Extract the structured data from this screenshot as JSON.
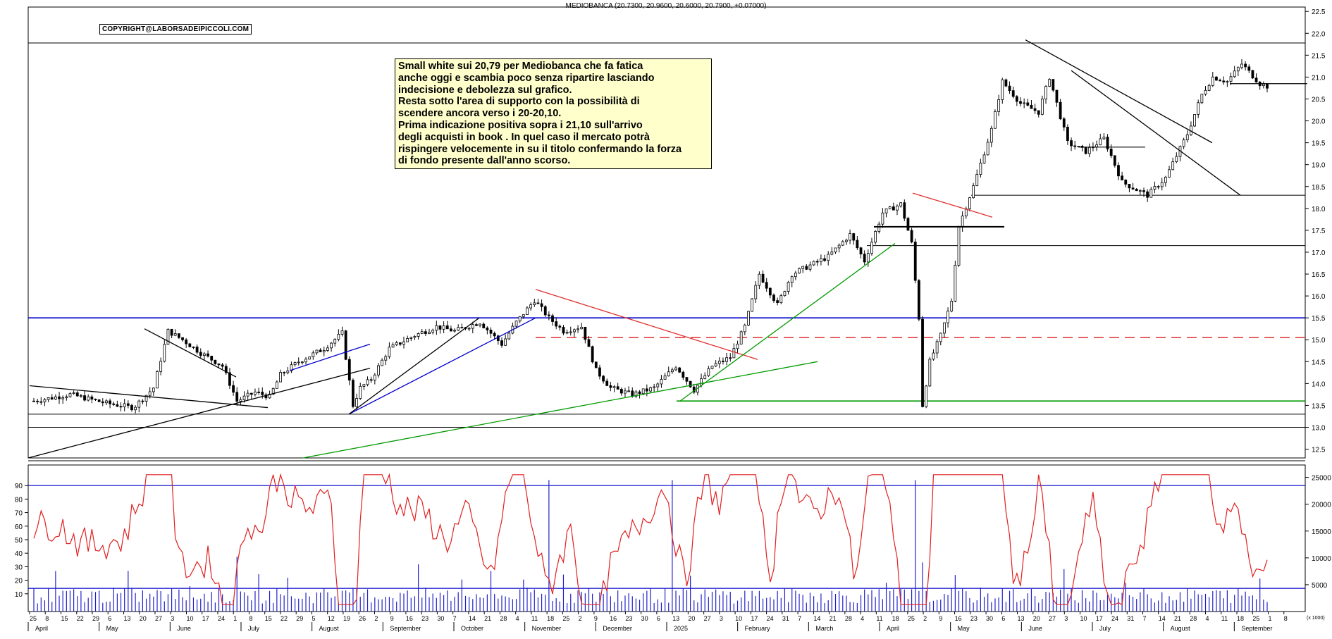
{
  "header": "MEDIOBANCA (20.7300, 20.9600, 20.6000, 20.7900, +0.07000)",
  "copyright": "COPYRIGHT@LABORSADEIPICCOLI.COM",
  "note_lines": [
    "Small white sui 20,79  per Mediobanca che fa fatica",
    "anche oggi e scambia poco senza ripartire lasciando",
    "indecisione e debolezza sul grafico.",
    "Resta sotto l'area di supporto con la possibilità di",
    "scendere ancora verso i 20-20,10.",
    "Prima indicazione positiva sopra i 21,10 sull'arrivo",
    "degli acquisti in book . In quel caso il mercato potrà",
    "rispingere velocemente in su il titolo confermando la forza",
    "di fondo presente dall'anno scorso."
  ],
  "chart_data": [
    {
      "type": "candlestick",
      "title": "MEDIOBANCA",
      "ylim": [
        12.3,
        22.6
      ],
      "y_ticks": [
        "12.5",
        "13.0",
        "13.5",
        "14.0",
        "14.5",
        "15.0",
        "15.5",
        "16.0",
        "16.5",
        "17.0",
        "17.5",
        "18.0",
        "18.5",
        "19.0",
        "19.5",
        "20.0",
        "20.5",
        "21.0",
        "21.5",
        "22.0",
        "22.5"
      ],
      "last_bar": {
        "open": 20.73,
        "high": 20.96,
        "low": 20.6,
        "close": 20.79,
        "change": 0.07
      },
      "price_path": [
        [
          0,
          13.6
        ],
        [
          20,
          13.75
        ],
        [
          40,
          13.55
        ],
        [
          55,
          13.45
        ],
        [
          66,
          13.9
        ],
        [
          74,
          15.2
        ],
        [
          82,
          15.0
        ],
        [
          92,
          14.7
        ],
        [
          104,
          14.4
        ],
        [
          112,
          13.6
        ],
        [
          122,
          13.8
        ],
        [
          130,
          13.7
        ],
        [
          136,
          14.2
        ],
        [
          146,
          14.5
        ],
        [
          160,
          14.8
        ],
        [
          170,
          15.15
        ],
        [
          176,
          13.5
        ],
        [
          180,
          13.9
        ],
        [
          186,
          14.1
        ],
        [
          196,
          14.8
        ],
        [
          210,
          15.1
        ],
        [
          222,
          15.3
        ],
        [
          232,
          15.2
        ],
        [
          246,
          15.4
        ],
        [
          258,
          14.9
        ],
        [
          266,
          15.4
        ],
        [
          276,
          15.9
        ],
        [
          284,
          15.5
        ],
        [
          292,
          15.2
        ],
        [
          302,
          15.3
        ],
        [
          310,
          14.3
        ],
        [
          318,
          13.9
        ],
        [
          330,
          13.75
        ],
        [
          342,
          13.9
        ],
        [
          354,
          14.4
        ],
        [
          364,
          13.85
        ],
        [
          374,
          14.4
        ],
        [
          384,
          14.6
        ],
        [
          392,
          15.3
        ],
        [
          400,
          16.5
        ],
        [
          410,
          15.8
        ],
        [
          418,
          16.5
        ],
        [
          428,
          16.7
        ],
        [
          438,
          16.9
        ],
        [
          450,
          17.4
        ],
        [
          458,
          16.8
        ],
        [
          468,
          17.9
        ],
        [
          478,
          18.1
        ],
        [
          484,
          17.2
        ],
        [
          488,
          15.5
        ],
        [
          490,
          13.5
        ],
        [
          494,
          14.5
        ],
        [
          500,
          15.1
        ],
        [
          506,
          15.9
        ],
        [
          510,
          17.6
        ],
        [
          518,
          18.5
        ],
        [
          528,
          19.8
        ],
        [
          534,
          20.9
        ],
        [
          544,
          20.4
        ],
        [
          554,
          20.2
        ],
        [
          560,
          21.0
        ],
        [
          570,
          19.5
        ],
        [
          580,
          19.3
        ],
        [
          590,
          19.6
        ],
        [
          600,
          18.6
        ],
        [
          614,
          18.3
        ],
        [
          624,
          18.7
        ],
        [
          636,
          19.7
        ],
        [
          644,
          20.6
        ],
        [
          650,
          21.0
        ],
        [
          658,
          20.9
        ],
        [
          666,
          21.3
        ],
        [
          676,
          20.85
        ],
        [
          680,
          20.79
        ]
      ],
      "annotations": [
        {
          "kind": "resistance",
          "level": 21.78
        },
        {
          "kind": "resistance",
          "level": 15.5,
          "color": "#0000cc"
        },
        {
          "kind": "dashed",
          "level": 15.05,
          "color": "#e03030"
        },
        {
          "kind": "support",
          "level": 18.3
        },
        {
          "kind": "support",
          "level": 17.15
        },
        {
          "kind": "support",
          "level": 13.6,
          "color": "#009900"
        },
        {
          "kind": "support",
          "level": 13.3
        },
        {
          "kind": "support",
          "level": 13.0
        }
      ]
    },
    {
      "type": "line",
      "series": [
        {
          "values": "oscillator"
        }
      ],
      "ylim": [
        0,
        100
      ],
      "y_ticks": [
        "10",
        "20",
        "30",
        "40",
        "50",
        "60",
        "70",
        "80",
        "90"
      ],
      "levels": [
        90,
        14
      ]
    },
    {
      "type": "bar",
      "series": [
        {
          "values": "volume"
        }
      ],
      "y_ticks": [
        "5000",
        "10000",
        "15000",
        "20000",
        "25000"
      ],
      "scale_label": "(x 1000)"
    }
  ],
  "x_axis": {
    "day_ticks": [
      "25",
      "8",
      "15",
      "22",
      "29",
      "6",
      "13",
      "20",
      "27",
      "3",
      "10",
      "17",
      "24",
      "1",
      "8",
      "15",
      "22",
      "29",
      "5",
      "12",
      "19",
      "26",
      "2",
      "9",
      "16",
      "23",
      "30",
      "7",
      "14",
      "21",
      "28",
      "4",
      "11",
      "18",
      "25",
      "2",
      "9",
      "16",
      "23",
      "30",
      "6",
      "13",
      "20",
      "27",
      "3",
      "10",
      "17",
      "24",
      "31",
      "7",
      "14",
      "21",
      "28",
      "4",
      "11",
      "18",
      "25",
      "2",
      "9",
      "16",
      "23",
      "30",
      "6",
      "13",
      "20",
      "27",
      "3",
      "10",
      "17",
      "24",
      "31",
      "7",
      "14",
      "21",
      "28",
      "4",
      "11",
      "18",
      "25",
      "1",
      "8"
    ],
    "months": [
      "April",
      "May",
      "June",
      "July",
      "August",
      "September",
      "October",
      "November",
      "December",
      "2025",
      "February",
      "March",
      "April",
      "May",
      "June",
      "July",
      "August",
      "September"
    ]
  }
}
